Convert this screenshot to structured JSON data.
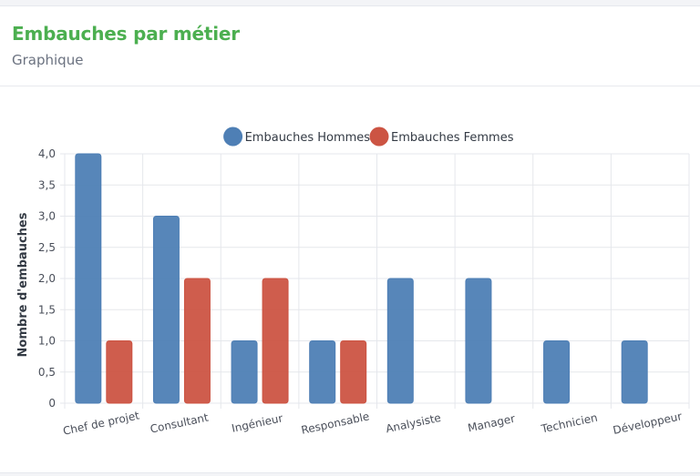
{
  "header": {
    "title": "Embauches par métier",
    "subtitle": "Graphique"
  },
  "chart_data": {
    "type": "bar",
    "categories": [
      "Chef de projet",
      "Consultant",
      "Ingénieur",
      "Responsable",
      "Analysiste",
      "Manager",
      "Technicien",
      "Développeur"
    ],
    "series": [
      {
        "name": "Embauches Hommes",
        "values": [
          4,
          3,
          1,
          1,
          2,
          2,
          1,
          1
        ],
        "color": "#4e7fb5"
      },
      {
        "name": "Embauches Femmes",
        "values": [
          1,
          2,
          2,
          1,
          0,
          0,
          0,
          0
        ],
        "color": "#cc5443"
      }
    ],
    "title": "",
    "xlabel": "",
    "ylabel": "Nombre d'embauches",
    "ylim": [
      0,
      4
    ],
    "yticks": [
      "0",
      "0,5",
      "1,0",
      "1,5",
      "2,0",
      "2,5",
      "3,0",
      "3,5",
      "4,0"
    ],
    "grid": true,
    "legend_position": "top-center"
  }
}
